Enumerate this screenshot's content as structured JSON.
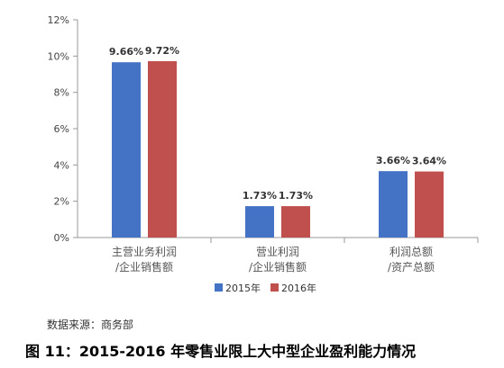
{
  "chart_data": {
    "type": "bar",
    "categories": [
      {
        "line1": "主营业务利润",
        "line2": "/企业销售额"
      },
      {
        "line1": "营业利润",
        "line2": "/企业销售额"
      },
      {
        "line1": "利润总额",
        "line2": "/资产总额"
      }
    ],
    "series": [
      {
        "name": "2015年",
        "color": "#4472C4",
        "values": [
          9.66,
          1.73,
          3.66
        ],
        "labels": [
          "9.66%",
          "1.73%",
          "3.66%"
        ]
      },
      {
        "name": "2016年",
        "color": "#C0504D",
        "values": [
          9.72,
          1.73,
          3.64
        ],
        "labels": [
          "9.72%",
          "1.73%",
          "3.64%"
        ]
      }
    ],
    "ylim": [
      0,
      12
    ],
    "yticks": [
      {
        "value": 0,
        "label": "0%"
      },
      {
        "value": 2,
        "label": "2%"
      },
      {
        "value": 4,
        "label": "4%"
      },
      {
        "value": 6,
        "label": "6%"
      },
      {
        "value": 8,
        "label": "8%"
      },
      {
        "value": 10,
        "label": "10%"
      },
      {
        "value": 12,
        "label": "12%"
      }
    ],
    "legend_position": "bottom",
    "grid": false
  },
  "source_note": "数据来源：商务部",
  "caption": "图 11：2015-2016 年零售业限上大中型企业盈利能力情况"
}
